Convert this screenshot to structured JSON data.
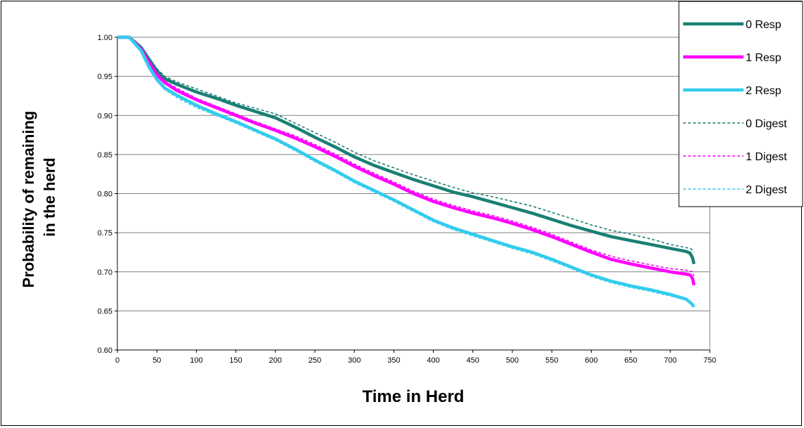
{
  "chart_data": {
    "type": "line",
    "title": "",
    "xlabel": "Time in Herd",
    "ylabel_lines": [
      "Probability of remaining",
      "in the herd"
    ],
    "xlim": [
      0,
      750
    ],
    "ylim": [
      0.6,
      1.0
    ],
    "x_ticks": [
      "0",
      "50",
      "100",
      "150",
      "200",
      "250",
      "300",
      "350",
      "400",
      "450",
      "500",
      "550",
      "600",
      "650",
      "700",
      "750"
    ],
    "y_ticks": [
      "0.60",
      "0.65",
      "0.70",
      "0.75",
      "0.80",
      "0.85",
      "0.90",
      "0.95",
      "1.00"
    ],
    "grid": "horizontal",
    "legend_position": "top-right",
    "series": [
      {
        "name": "0 Resp",
        "color": "#1a7f74",
        "style": "solid",
        "x": [
          0,
          15,
          30,
          40,
          50,
          60,
          75,
          100,
          125,
          150,
          175,
          200,
          225,
          250,
          275,
          300,
          325,
          350,
          375,
          400,
          425,
          450,
          475,
          500,
          525,
          550,
          575,
          600,
          625,
          650,
          675,
          700,
          720,
          725,
          728,
          730
        ],
        "y": [
          1.0,
          1.0,
          0.987,
          0.972,
          0.957,
          0.947,
          0.94,
          0.93,
          0.922,
          0.913,
          0.905,
          0.897,
          0.885,
          0.872,
          0.86,
          0.847,
          0.836,
          0.827,
          0.818,
          0.81,
          0.802,
          0.796,
          0.789,
          0.782,
          0.775,
          0.767,
          0.759,
          0.752,
          0.745,
          0.74,
          0.735,
          0.73,
          0.726,
          0.724,
          0.718,
          0.71
        ]
      },
      {
        "name": "1 Resp",
        "color": "#ff00ff",
        "style": "solid",
        "x": [
          0,
          15,
          30,
          40,
          50,
          60,
          75,
          100,
          125,
          150,
          175,
          200,
          225,
          250,
          275,
          300,
          325,
          350,
          375,
          400,
          425,
          450,
          475,
          500,
          525,
          550,
          575,
          600,
          625,
          650,
          675,
          700,
          720,
          725,
          728,
          730
        ],
        "y": [
          1.0,
          1.0,
          0.985,
          0.968,
          0.952,
          0.942,
          0.932,
          0.92,
          0.91,
          0.9,
          0.89,
          0.881,
          0.871,
          0.86,
          0.848,
          0.835,
          0.823,
          0.812,
          0.8,
          0.79,
          0.782,
          0.775,
          0.769,
          0.762,
          0.754,
          0.745,
          0.735,
          0.725,
          0.716,
          0.71,
          0.705,
          0.7,
          0.697,
          0.696,
          0.692,
          0.683
        ]
      },
      {
        "name": "2 Resp",
        "color": "#33ccee",
        "style": "solid",
        "x": [
          0,
          15,
          30,
          40,
          50,
          60,
          75,
          100,
          125,
          150,
          175,
          200,
          225,
          250,
          275,
          300,
          325,
          350,
          375,
          400,
          425,
          450,
          475,
          500,
          525,
          550,
          575,
          600,
          625,
          650,
          675,
          700,
          720,
          725,
          728,
          730
        ],
        "y": [
          1.0,
          1.0,
          0.983,
          0.962,
          0.946,
          0.935,
          0.926,
          0.913,
          0.902,
          0.892,
          0.881,
          0.87,
          0.857,
          0.843,
          0.83,
          0.816,
          0.804,
          0.792,
          0.779,
          0.766,
          0.756,
          0.748,
          0.74,
          0.732,
          0.725,
          0.716,
          0.706,
          0.696,
          0.688,
          0.682,
          0.677,
          0.671,
          0.665,
          0.661,
          0.658,
          0.655
        ]
      },
      {
        "name": "0 Digest",
        "color": "#1a7f74",
        "style": "dashed",
        "x": [
          0,
          15,
          30,
          40,
          50,
          60,
          75,
          100,
          125,
          150,
          175,
          200,
          225,
          250,
          275,
          300,
          325,
          350,
          375,
          400,
          425,
          450,
          475,
          500,
          525,
          550,
          575,
          600,
          625,
          650,
          675,
          700,
          720,
          725,
          728,
          730
        ],
        "y": [
          1.0,
          1.0,
          0.988,
          0.974,
          0.96,
          0.95,
          0.943,
          0.934,
          0.925,
          0.916,
          0.909,
          0.902,
          0.89,
          0.878,
          0.866,
          0.853,
          0.842,
          0.833,
          0.824,
          0.816,
          0.808,
          0.801,
          0.796,
          0.79,
          0.784,
          0.776,
          0.768,
          0.76,
          0.753,
          0.748,
          0.742,
          0.735,
          0.731,
          0.73,
          0.728,
          0.725
        ]
      },
      {
        "name": "1 Digest",
        "color": "#ff00ff",
        "style": "dashed",
        "x": [
          0,
          15,
          30,
          40,
          50,
          60,
          75,
          100,
          125,
          150,
          175,
          200,
          225,
          250,
          275,
          300,
          325,
          350,
          375,
          400,
          425,
          450,
          475,
          500,
          525,
          550,
          575,
          600,
          625,
          650,
          675,
          700,
          720,
          725,
          728,
          730
        ],
        "y": [
          1.0,
          1.0,
          0.986,
          0.97,
          0.954,
          0.944,
          0.935,
          0.922,
          0.912,
          0.902,
          0.892,
          0.883,
          0.874,
          0.863,
          0.851,
          0.838,
          0.826,
          0.815,
          0.803,
          0.793,
          0.785,
          0.778,
          0.772,
          0.765,
          0.757,
          0.748,
          0.738,
          0.728,
          0.72,
          0.714,
          0.709,
          0.704,
          0.702,
          0.701,
          0.7,
          0.695
        ]
      },
      {
        "name": "2 Digest",
        "color": "#33ccee",
        "style": "dashed",
        "x": [
          0,
          15,
          30,
          40,
          50,
          60,
          75,
          100,
          125,
          150,
          175,
          200,
          225,
          250,
          275,
          300,
          325,
          350,
          375,
          400,
          425,
          450,
          475,
          500,
          525,
          550,
          575,
          600,
          625,
          650,
          675,
          700,
          720,
          725,
          728,
          730
        ],
        "y": [
          1.0,
          1.0,
          0.982,
          0.96,
          0.944,
          0.933,
          0.923,
          0.91,
          0.9,
          0.89,
          0.879,
          0.868,
          0.855,
          0.841,
          0.828,
          0.814,
          0.802,
          0.79,
          0.777,
          0.764,
          0.754,
          0.746,
          0.738,
          0.73,
          0.723,
          0.714,
          0.704,
          0.694,
          0.686,
          0.68,
          0.675,
          0.669,
          0.664,
          0.662,
          0.66,
          0.658
        ]
      }
    ]
  }
}
